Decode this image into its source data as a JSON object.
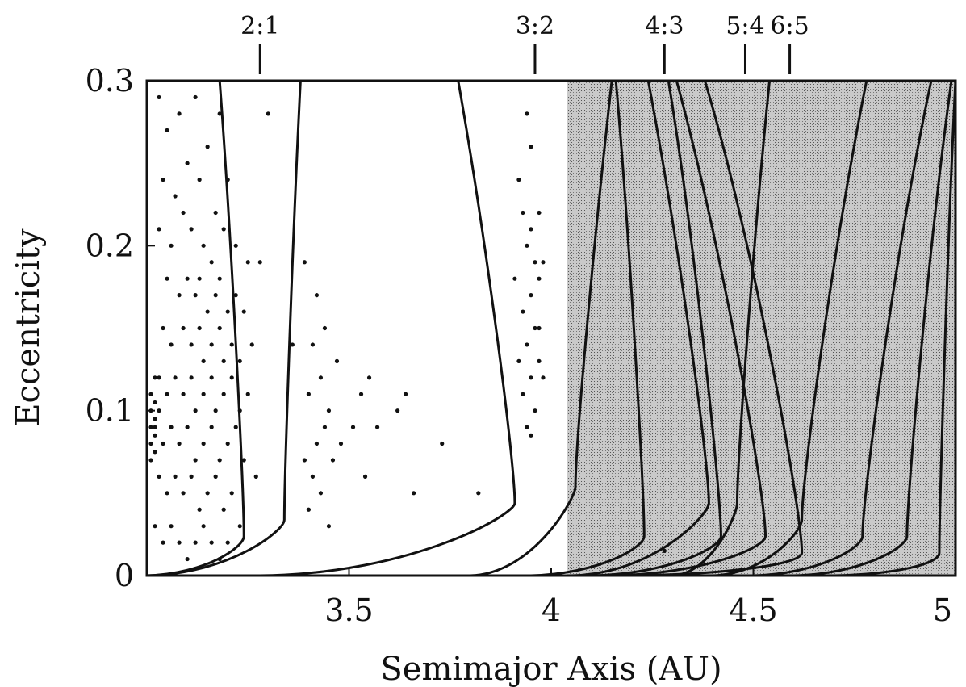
{
  "chart_data": {
    "type": "scatter",
    "xlabel": "Semimajor Axis (AU)",
    "ylabel": "Eccentricity",
    "xlim": [
      3.0,
      5.0
    ],
    "ylim": [
      0,
      0.3
    ],
    "x_ticks": [
      {
        "value": 3.5,
        "label": "3.5"
      },
      {
        "value": 4.0,
        "label": "4"
      },
      {
        "value": 4.5,
        "label": "4.5"
      },
      {
        "value": 5.0,
        "label": "5"
      }
    ],
    "y_ticks": [
      {
        "value": 0,
        "label": "0"
      },
      {
        "value": 0.1,
        "label": "0.1"
      },
      {
        "value": 0.2,
        "label": "0.2"
      },
      {
        "value": 0.3,
        "label": "0.3"
      }
    ],
    "resonances": [
      {
        "label": "2:1",
        "a": 3.28
      },
      {
        "label": "3:2",
        "a": 3.96
      },
      {
        "label": "4:3",
        "a": 4.28
      },
      {
        "label": "5:4",
        "a": 4.48
      },
      {
        "label": "6:5",
        "a": 4.59
      }
    ],
    "shaded_region": {
      "from_a": 4.04,
      "to_a": 5.0
    },
    "boundary_curves": [
      {
        "a0": 3.0,
        "left": 3.18,
        "right": 3.24,
        "e_turn": 0.02
      },
      {
        "a0": 3.0,
        "left": 3.38,
        "right": 3.34,
        "e_turn": 0.03
      },
      {
        "a0": 3.28,
        "left": 3.77,
        "right": 3.91,
        "e_turn": 0.04
      },
      {
        "a0": 3.8,
        "left": 4.15,
        "right": 4.06,
        "e_turn": 0.05
      },
      {
        "a0": 3.95,
        "left": 4.16,
        "right": 4.23,
        "e_turn": 0.02
      },
      {
        "a0": 4.05,
        "left": 4.24,
        "right": 4.39,
        "e_turn": 0.04
      },
      {
        "a0": 4.1,
        "left": 4.29,
        "right": 4.42,
        "e_turn": 0.02
      },
      {
        "a0": 4.15,
        "left": 4.31,
        "right": 4.53,
        "e_turn": 0.02
      },
      {
        "a0": 4.2,
        "left": 4.38,
        "right": 4.62,
        "e_turn": 0.01
      },
      {
        "a0": 4.3,
        "left": 4.54,
        "right": 4.46,
        "e_turn": 0.04
      },
      {
        "a0": 4.4,
        "left": 4.78,
        "right": 4.62,
        "e_turn": 0.03
      },
      {
        "a0": 4.5,
        "left": 4.94,
        "right": 4.77,
        "e_turn": 0.02
      },
      {
        "a0": 4.6,
        "left": 4.99,
        "right": 4.88,
        "e_turn": 0.02
      },
      {
        "a0": 4.7,
        "left": 5.0,
        "right": 4.96,
        "e_turn": 0.01
      }
    ],
    "series": [
      {
        "points": [
          [
            3.03,
            0.29
          ],
          [
            3.05,
            0.27
          ],
          [
            3.08,
            0.28
          ],
          [
            3.12,
            0.29
          ],
          [
            3.15,
            0.26
          ],
          [
            3.18,
            0.28
          ],
          [
            3.04,
            0.24
          ],
          [
            3.07,
            0.23
          ],
          [
            3.1,
            0.25
          ],
          [
            3.13,
            0.24
          ],
          [
            3.17,
            0.22
          ],
          [
            3.2,
            0.24
          ],
          [
            3.03,
            0.21
          ],
          [
            3.06,
            0.2
          ],
          [
            3.09,
            0.22
          ],
          [
            3.11,
            0.21
          ],
          [
            3.14,
            0.2
          ],
          [
            3.16,
            0.19
          ],
          [
            3.19,
            0.21
          ],
          [
            3.22,
            0.2
          ],
          [
            3.25,
            0.19
          ],
          [
            3.05,
            0.18
          ],
          [
            3.08,
            0.17
          ],
          [
            3.1,
            0.18
          ],
          [
            3.12,
            0.17
          ],
          [
            3.13,
            0.18
          ],
          [
            3.15,
            0.16
          ],
          [
            3.17,
            0.17
          ],
          [
            3.18,
            0.18
          ],
          [
            3.2,
            0.16
          ],
          [
            3.22,
            0.17
          ],
          [
            3.24,
            0.16
          ],
          [
            3.04,
            0.15
          ],
          [
            3.06,
            0.14
          ],
          [
            3.09,
            0.15
          ],
          [
            3.11,
            0.14
          ],
          [
            3.13,
            0.15
          ],
          [
            3.14,
            0.13
          ],
          [
            3.16,
            0.14
          ],
          [
            3.18,
            0.15
          ],
          [
            3.19,
            0.13
          ],
          [
            3.21,
            0.14
          ],
          [
            3.23,
            0.13
          ],
          [
            3.26,
            0.14
          ],
          [
            3.03,
            0.12
          ],
          [
            3.05,
            0.11
          ],
          [
            3.07,
            0.12
          ],
          [
            3.09,
            0.11
          ],
          [
            3.11,
            0.12
          ],
          [
            3.12,
            0.1
          ],
          [
            3.14,
            0.11
          ],
          [
            3.16,
            0.12
          ],
          [
            3.17,
            0.1
          ],
          [
            3.19,
            0.11
          ],
          [
            3.21,
            0.12
          ],
          [
            3.23,
            0.1
          ],
          [
            3.25,
            0.11
          ],
          [
            3.02,
            0.09
          ],
          [
            3.04,
            0.08
          ],
          [
            3.06,
            0.09
          ],
          [
            3.08,
            0.08
          ],
          [
            3.1,
            0.09
          ],
          [
            3.12,
            0.07
          ],
          [
            3.14,
            0.08
          ],
          [
            3.16,
            0.09
          ],
          [
            3.18,
            0.07
          ],
          [
            3.2,
            0.08
          ],
          [
            3.22,
            0.09
          ],
          [
            3.24,
            0.07
          ],
          [
            3.03,
            0.06
          ],
          [
            3.05,
            0.05
          ],
          [
            3.07,
            0.06
          ],
          [
            3.09,
            0.05
          ],
          [
            3.11,
            0.06
          ],
          [
            3.13,
            0.04
          ],
          [
            3.15,
            0.05
          ],
          [
            3.17,
            0.06
          ],
          [
            3.19,
            0.04
          ],
          [
            3.21,
            0.05
          ],
          [
            3.23,
            0.03
          ],
          [
            3.02,
            0.03
          ],
          [
            3.04,
            0.02
          ],
          [
            3.06,
            0.03
          ],
          [
            3.08,
            0.02
          ],
          [
            3.1,
            0.01
          ],
          [
            3.12,
            0.02
          ],
          [
            3.14,
            0.03
          ],
          [
            3.16,
            0.02
          ],
          [
            3.18,
            0.01
          ],
          [
            3.2,
            0.02
          ],
          [
            3.01,
            0.11
          ],
          [
            3.01,
            0.1
          ],
          [
            3.01,
            0.09
          ],
          [
            3.01,
            0.08
          ],
          [
            3.01,
            0.07
          ],
          [
            3.02,
            0.12
          ],
          [
            3.02,
            0.105
          ],
          [
            3.02,
            0.095
          ],
          [
            3.02,
            0.085
          ],
          [
            3.02,
            0.075
          ],
          [
            3.03,
            0.1
          ],
          [
            3.28,
            0.19
          ],
          [
            3.3,
            0.28
          ],
          [
            3.27,
            0.06
          ],
          [
            3.39,
            0.19
          ],
          [
            3.42,
            0.17
          ],
          [
            3.41,
            0.14
          ],
          [
            3.43,
            0.12
          ],
          [
            3.4,
            0.11
          ],
          [
            3.45,
            0.1
          ],
          [
            3.44,
            0.09
          ],
          [
            3.42,
            0.08
          ],
          [
            3.46,
            0.07
          ],
          [
            3.41,
            0.06
          ],
          [
            3.43,
            0.05
          ],
          [
            3.4,
            0.04
          ],
          [
            3.45,
            0.03
          ],
          [
            3.39,
            0.07
          ],
          [
            3.47,
            0.13
          ],
          [
            3.44,
            0.15
          ],
          [
            3.48,
            0.08
          ],
          [
            3.51,
            0.09
          ],
          [
            3.53,
            0.11
          ],
          [
            3.55,
            0.12
          ],
          [
            3.57,
            0.09
          ],
          [
            3.54,
            0.06
          ],
          [
            3.62,
            0.1
          ],
          [
            3.64,
            0.11
          ],
          [
            3.66,
            0.05
          ],
          [
            3.73,
            0.08
          ],
          [
            3.82,
            0.05
          ],
          [
            3.36,
            0.14
          ],
          [
            3.94,
            0.28
          ],
          [
            3.95,
            0.26
          ],
          [
            3.92,
            0.24
          ],
          [
            3.93,
            0.22
          ],
          [
            3.95,
            0.21
          ],
          [
            3.97,
            0.22
          ],
          [
            3.94,
            0.2
          ],
          [
            3.96,
            0.19
          ],
          [
            3.95,
            0.17
          ],
          [
            3.97,
            0.18
          ],
          [
            3.93,
            0.16
          ],
          [
            3.96,
            0.15
          ],
          [
            3.94,
            0.14
          ],
          [
            3.97,
            0.13
          ],
          [
            3.95,
            0.12
          ],
          [
            3.93,
            0.11
          ],
          [
            3.96,
            0.1
          ],
          [
            3.94,
            0.09
          ],
          [
            3.97,
            0.15
          ],
          [
            3.98,
            0.19
          ],
          [
            3.91,
            0.18
          ],
          [
            3.92,
            0.13
          ],
          [
            3.98,
            0.12
          ],
          [
            3.95,
            0.085
          ],
          [
            4.28,
            0.015
          ]
        ]
      }
    ]
  }
}
